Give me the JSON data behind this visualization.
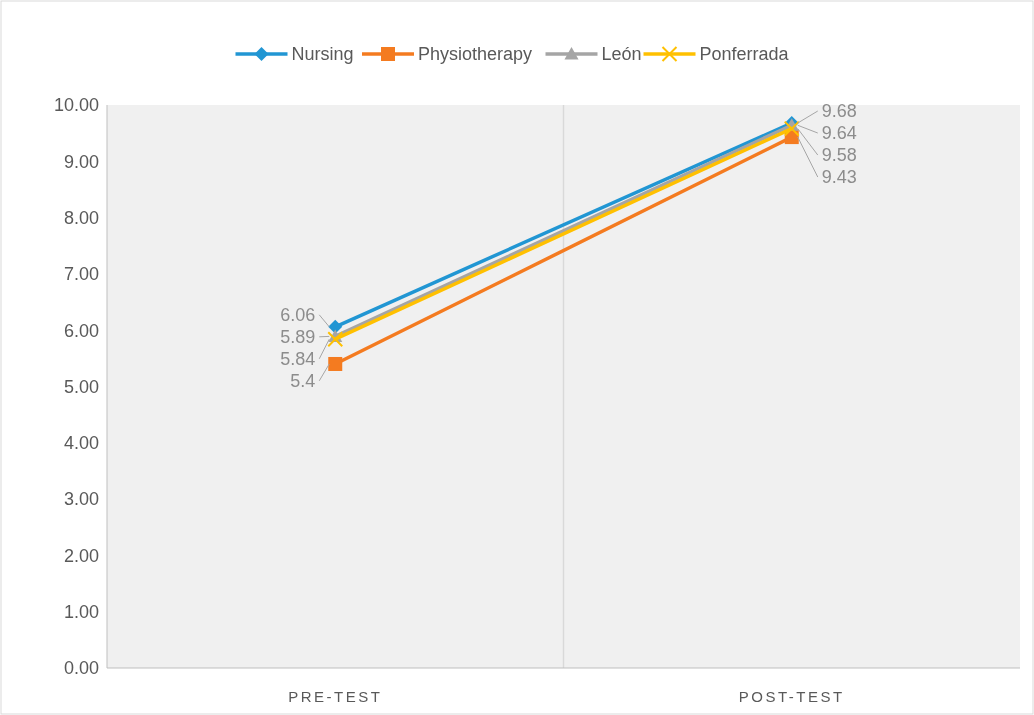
{
  "chart_data": {
    "type": "line",
    "categories": [
      "PRE-TEST",
      "POST-TEST"
    ],
    "series": [
      {
        "name": "Nursing",
        "color": "#2196d3",
        "marker": "diamond",
        "values": [
          6.06,
          9.68
        ]
      },
      {
        "name": "Physiotherapy",
        "color": "#f47b20",
        "marker": "square",
        "values": [
          5.4,
          9.43
        ]
      },
      {
        "name": "León",
        "color": "#a5a5a5",
        "marker": "triangle",
        "values": [
          5.89,
          9.64
        ]
      },
      {
        "name": "Ponferrada",
        "color": "#ffc000",
        "marker": "cross",
        "values": [
          5.84,
          9.58
        ]
      }
    ],
    "ylim": [
      0,
      10
    ],
    "yticks": [
      {
        "value": 0,
        "label": "0.00"
      },
      {
        "value": 1,
        "label": "1.00"
      },
      {
        "value": 2,
        "label": "2.00"
      },
      {
        "value": 3,
        "label": "3.00"
      },
      {
        "value": 4,
        "label": "4.00"
      },
      {
        "value": 5,
        "label": "5.00"
      },
      {
        "value": 6,
        "label": "6.00"
      },
      {
        "value": 7,
        "label": "7.00"
      },
      {
        "value": 8,
        "label": "8.00"
      },
      {
        "value": 9,
        "label": "9.00"
      },
      {
        "value": 10,
        "label": "10.00"
      }
    ],
    "grid": "x",
    "legend": "top",
    "data_labels": true,
    "line_style": "solid"
  }
}
